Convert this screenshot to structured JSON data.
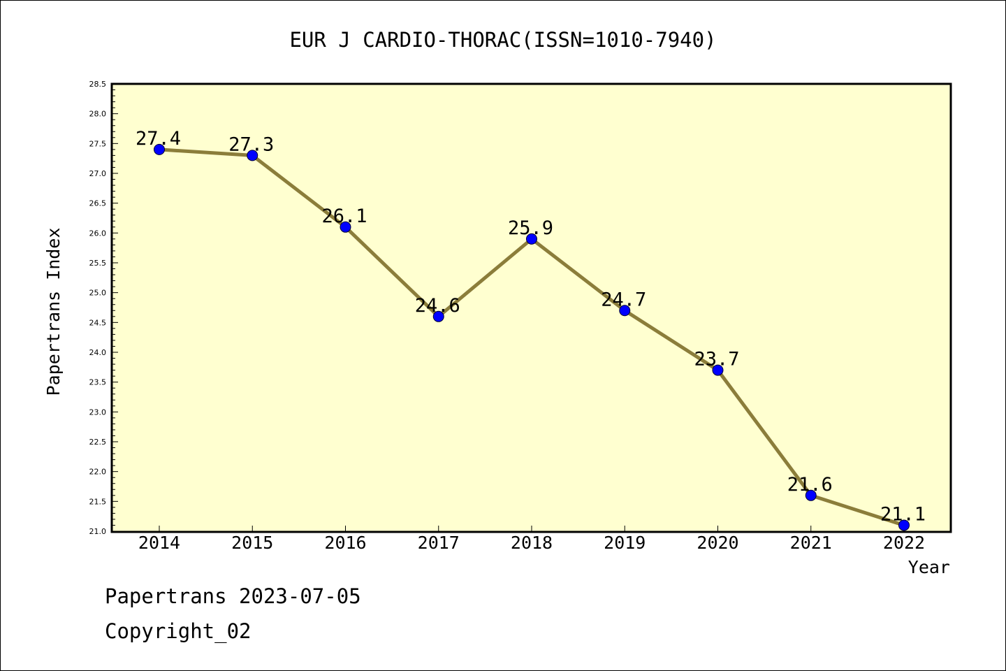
{
  "chart_data": {
    "type": "line",
    "title": "EUR J CARDIO-THORAC(ISSN=1010-7940)",
    "xlabel": "Year",
    "ylabel": "Papertrans Index",
    "categories": [
      "2014",
      "2015",
      "2016",
      "2017",
      "2018",
      "2019",
      "2020",
      "2021",
      "2022"
    ],
    "series": [
      {
        "values": [
          27.4,
          27.3,
          26.1,
          24.6,
          25.9,
          24.7,
          23.7,
          21.6,
          21.1
        ],
        "data_labels": [
          "27.4",
          "27.3",
          "26.1",
          "24.6",
          "25.9",
          "24.7",
          "23.7",
          "21.6",
          "21.1"
        ]
      }
    ],
    "ylim": [
      21.0,
      28.5
    ],
    "y_major_ticks": [
      "21.0",
      "21.5",
      "22.0",
      "22.5",
      "23.0",
      "23.5",
      "24.0",
      "24.5",
      "25.0",
      "25.5",
      "26.0",
      "26.5",
      "27.0",
      "27.5",
      "28.0",
      "28.5"
    ],
    "grid": false,
    "legend": "none"
  },
  "footer": {
    "date_line": "Papertrans 2023-07-05",
    "copyright": "Copyright_02"
  },
  "colors": {
    "plot_background": "#ffffd0",
    "line": "#8b7d3a",
    "marker": "#0000ff",
    "axis": "#000000"
  }
}
